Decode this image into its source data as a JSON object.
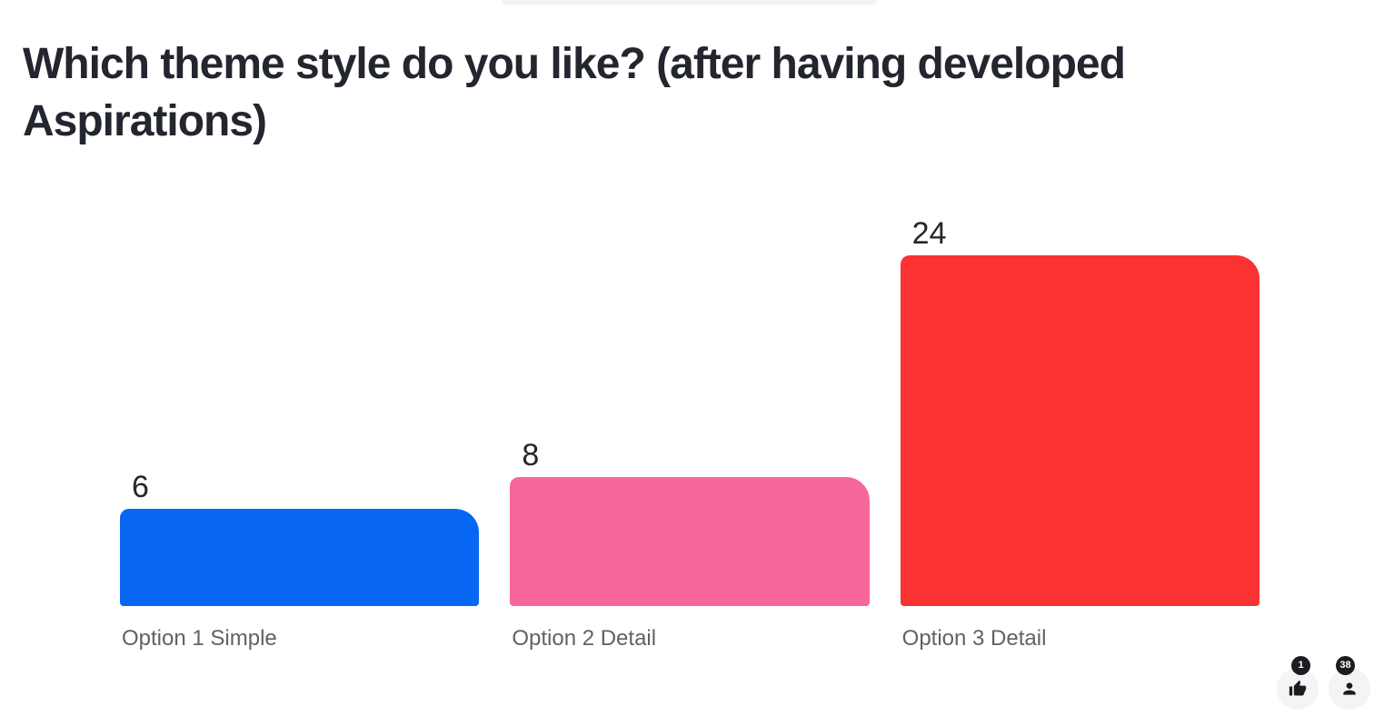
{
  "title": {
    "text": "Which theme style do you like? (after having developed Aspirations)",
    "color": "#23252f"
  },
  "top_strip": {
    "color": "#f3f3f4"
  },
  "chart_data": {
    "type": "bar",
    "title": "Which theme style do you like? (after having developed Aspirations)",
    "categories": [
      "Option 1 Simple",
      "Option 2 Detail",
      "Option 3 Detail"
    ],
    "values": [
      6,
      8,
      24
    ],
    "colors": [
      "#0767F2",
      "#F8679C",
      "#FA3232"
    ],
    "xlabel": "",
    "ylabel": "",
    "ylim": [
      0,
      24
    ],
    "grid": false,
    "legend": "none",
    "value_label_color": "#26262b",
    "category_label_color": "#5f6269"
  },
  "footer": {
    "reactions": {
      "icon": "thumbs-up-icon",
      "count": "1"
    },
    "participants": {
      "icon": "person-icon",
      "count": "38"
    }
  }
}
